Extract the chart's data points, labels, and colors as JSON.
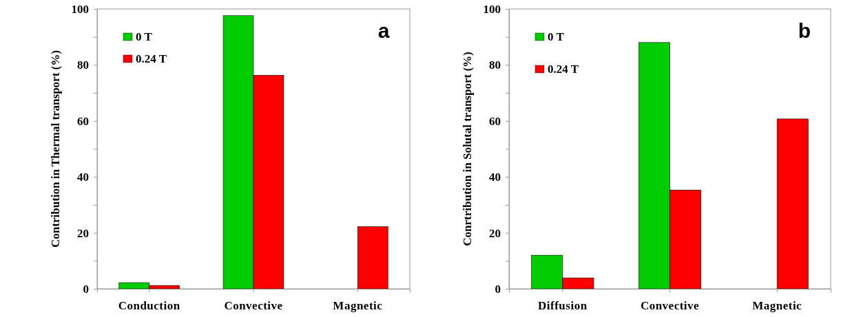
{
  "chart_data": [
    {
      "type": "bar",
      "ylabel": "Contribution in Thermal transport (%)",
      "annotations": [
        "a"
      ],
      "categories": [
        "Conduction",
        "Convective",
        "Magnetic"
      ],
      "series": [
        {
          "name": "0 T",
          "color": "#00cc00",
          "values": [
            2.2,
            97.6,
            null
          ]
        },
        {
          "name": "0.24 T",
          "color": "#ff0000",
          "values": [
            1.2,
            76.3,
            22.2
          ]
        }
      ],
      "ylim": [
        0,
        100
      ],
      "yticks": [
        0,
        {
          "value": 10,
          "label": null
        },
        20,
        {
          "value": 30,
          "label": null
        },
        40,
        {
          "value": 50,
          "label": null
        },
        60,
        {
          "value": 70,
          "label": null
        },
        80,
        {
          "value": 90,
          "label": null
        },
        100
      ],
      "grid": false,
      "legend": "top left"
    },
    {
      "type": "bar",
      "ylabel": "Conrtribution in Solutal transport (%)",
      "annotations": [
        "b"
      ],
      "categories": [
        "Diffusion",
        "Convective",
        "Magnetic"
      ],
      "series": [
        {
          "name": "0 T",
          "color": "#00cc00",
          "values": [
            12.0,
            88.0,
            null
          ]
        },
        {
          "name": "0.24 T",
          "color": "#ff0000",
          "values": [
            3.9,
            35.3,
            60.7
          ]
        }
      ],
      "ylim": [
        0,
        100
      ],
      "yticks": [
        0,
        {
          "value": 10,
          "label": null
        },
        20,
        {
          "value": 30,
          "label": null
        },
        40,
        {
          "value": 50,
          "label": null
        },
        60,
        {
          "value": 70,
          "label": null
        },
        80,
        {
          "value": 90,
          "label": null
        },
        100
      ],
      "grid": false,
      "legend": "top left"
    }
  ]
}
